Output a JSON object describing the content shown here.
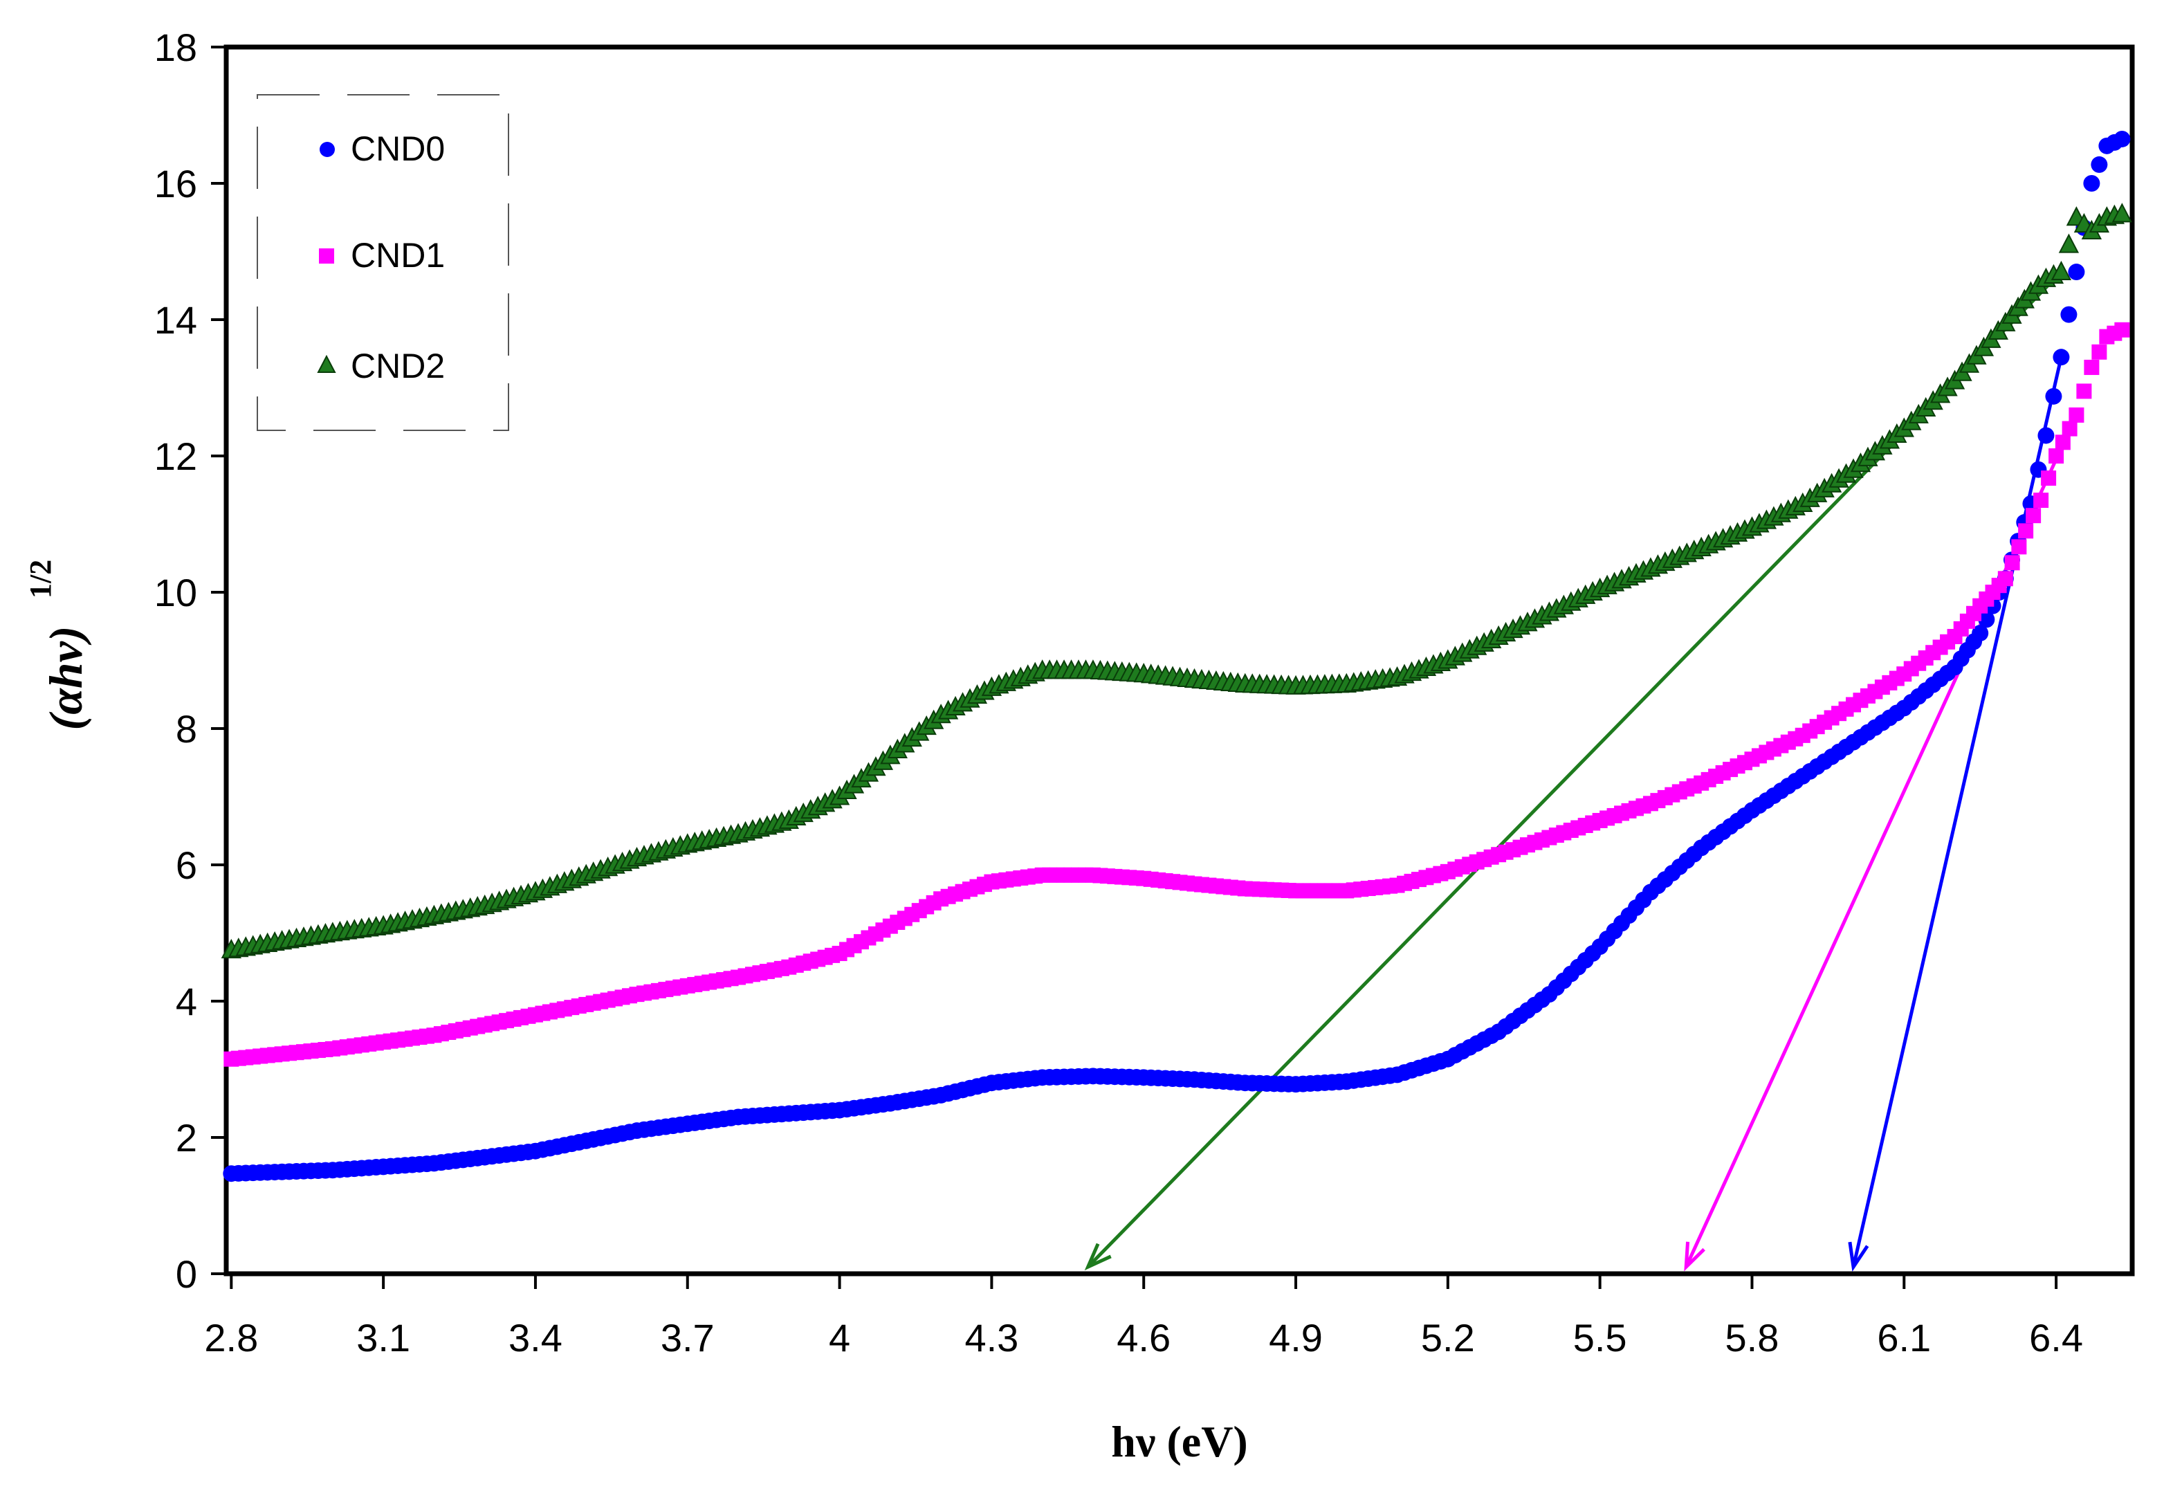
{
  "chart_data": {
    "type": "scatter",
    "title": "",
    "xlabel": "hν (eV)",
    "ylabel_main": "(αhν)",
    "ylabel_sup": "1/2",
    "xlim": [
      2.79,
      6.55
    ],
    "ylim": [
      0,
      18
    ],
    "xticks": [
      2.8,
      3.1,
      3.4,
      3.7,
      4,
      4.3,
      4.6,
      4.9,
      5.2,
      5.5,
      5.8,
      6.1,
      6.4
    ],
    "xtick_labels": [
      "2.8",
      "3.1",
      "3.4",
      "3.7",
      "4",
      "4.3",
      "4.6",
      "4.9",
      "5.2",
      "5.5",
      "5.8",
      "6.1",
      "6.4"
    ],
    "yticks": [
      0,
      2,
      4,
      6,
      8,
      10,
      12,
      14,
      16,
      18
    ],
    "ytick_labels": [
      "0",
      "2",
      "4",
      "6",
      "8",
      "10",
      "12",
      "14",
      "16",
      "18"
    ],
    "grid": false,
    "legend_position": "top-left",
    "series": [
      {
        "name": "CND0",
        "marker": "circle",
        "color": "#0000FF",
        "points": [
          [
            2.8,
            1.47
          ],
          [
            3.0,
            1.52
          ],
          [
            3.2,
            1.62
          ],
          [
            3.4,
            1.8
          ],
          [
            3.6,
            2.1
          ],
          [
            3.7,
            2.2
          ],
          [
            3.8,
            2.3
          ],
          [
            3.9,
            2.35
          ],
          [
            4.0,
            2.4
          ],
          [
            4.1,
            2.5
          ],
          [
            4.2,
            2.62
          ],
          [
            4.3,
            2.8
          ],
          [
            4.4,
            2.88
          ],
          [
            4.5,
            2.9
          ],
          [
            4.6,
            2.88
          ],
          [
            4.7,
            2.85
          ],
          [
            4.8,
            2.8
          ],
          [
            4.9,
            2.78
          ],
          [
            5.0,
            2.82
          ],
          [
            5.1,
            2.92
          ],
          [
            5.2,
            3.15
          ],
          [
            5.3,
            3.55
          ],
          [
            5.4,
            4.1
          ],
          [
            5.5,
            4.8
          ],
          [
            5.6,
            5.6
          ],
          [
            5.7,
            6.25
          ],
          [
            5.8,
            6.8
          ],
          [
            5.9,
            7.3
          ],
          [
            6.0,
            7.8
          ],
          [
            6.1,
            8.3
          ],
          [
            6.2,
            8.9
          ],
          [
            6.25,
            9.4
          ],
          [
            6.3,
            10.2
          ],
          [
            6.35,
            11.3
          ],
          [
            6.38,
            12.3
          ],
          [
            6.41,
            13.45
          ],
          [
            6.44,
            14.7
          ],
          [
            6.47,
            16.0
          ],
          [
            6.5,
            16.55
          ],
          [
            6.53,
            16.65
          ]
        ]
      },
      {
        "name": "CND1",
        "marker": "square",
        "color": "#FF00FF",
        "points": [
          [
            2.8,
            3.15
          ],
          [
            3.0,
            3.3
          ],
          [
            3.2,
            3.5
          ],
          [
            3.4,
            3.8
          ],
          [
            3.6,
            4.1
          ],
          [
            3.8,
            4.35
          ],
          [
            3.9,
            4.5
          ],
          [
            4.0,
            4.7
          ],
          [
            4.1,
            5.1
          ],
          [
            4.2,
            5.5
          ],
          [
            4.3,
            5.75
          ],
          [
            4.4,
            5.85
          ],
          [
            4.5,
            5.85
          ],
          [
            4.6,
            5.8
          ],
          [
            4.7,
            5.72
          ],
          [
            4.8,
            5.65
          ],
          [
            4.9,
            5.62
          ],
          [
            5.0,
            5.62
          ],
          [
            5.1,
            5.7
          ],
          [
            5.2,
            5.9
          ],
          [
            5.3,
            6.15
          ],
          [
            5.4,
            6.4
          ],
          [
            5.5,
            6.65
          ],
          [
            5.6,
            6.9
          ],
          [
            5.7,
            7.2
          ],
          [
            5.8,
            7.55
          ],
          [
            5.9,
            7.9
          ],
          [
            6.0,
            8.35
          ],
          [
            6.1,
            8.8
          ],
          [
            6.2,
            9.35
          ],
          [
            6.25,
            9.8
          ],
          [
            6.3,
            10.2
          ],
          [
            6.34,
            10.9
          ],
          [
            6.37,
            11.35
          ],
          [
            6.4,
            12.0
          ],
          [
            6.44,
            12.6
          ],
          [
            6.47,
            13.3
          ],
          [
            6.5,
            13.75
          ],
          [
            6.53,
            13.85
          ]
        ]
      },
      {
        "name": "CND2",
        "marker": "triangle",
        "color": "#1E7B1E",
        "points": [
          [
            2.8,
            4.75
          ],
          [
            2.9,
            4.88
          ],
          [
            3.0,
            5.0
          ],
          [
            3.1,
            5.1
          ],
          [
            3.2,
            5.25
          ],
          [
            3.3,
            5.4
          ],
          [
            3.4,
            5.6
          ],
          [
            3.5,
            5.85
          ],
          [
            3.6,
            6.1
          ],
          [
            3.7,
            6.3
          ],
          [
            3.8,
            6.45
          ],
          [
            3.9,
            6.65
          ],
          [
            4.0,
            7.0
          ],
          [
            4.1,
            7.6
          ],
          [
            4.2,
            8.2
          ],
          [
            4.3,
            8.6
          ],
          [
            4.4,
            8.85
          ],
          [
            4.5,
            8.85
          ],
          [
            4.6,
            8.8
          ],
          [
            4.7,
            8.72
          ],
          [
            4.8,
            8.65
          ],
          [
            4.9,
            8.62
          ],
          [
            5.0,
            8.65
          ],
          [
            5.1,
            8.75
          ],
          [
            5.2,
            9.0
          ],
          [
            5.3,
            9.35
          ],
          [
            5.4,
            9.7
          ],
          [
            5.5,
            10.05
          ],
          [
            5.6,
            10.35
          ],
          [
            5.7,
            10.65
          ],
          [
            5.8,
            10.95
          ],
          [
            5.9,
            11.3
          ],
          [
            6.0,
            11.8
          ],
          [
            6.1,
            12.4
          ],
          [
            6.2,
            13.1
          ],
          [
            6.3,
            13.95
          ],
          [
            6.35,
            14.4
          ],
          [
            6.38,
            14.6
          ],
          [
            6.41,
            14.7
          ],
          [
            6.44,
            15.5
          ],
          [
            6.47,
            15.3
          ],
          [
            6.5,
            15.5
          ],
          [
            6.53,
            15.55
          ]
        ]
      }
    ],
    "tangent_lines": [
      {
        "name": "CND2-fit",
        "color": "#1E7B1E",
        "from": [
          6.41,
          14.7
        ],
        "to": [
          4.49,
          0.1
        ]
      },
      {
        "name": "CND1-fit",
        "color": "#FF00FF",
        "from": [
          6.44,
          12.6
        ],
        "to": [
          5.67,
          0.1
        ]
      },
      {
        "name": "CND0-fit",
        "color": "#0000FF",
        "from": [
          6.41,
          13.45
        ],
        "to": [
          6.0,
          0.1
        ]
      }
    ]
  }
}
